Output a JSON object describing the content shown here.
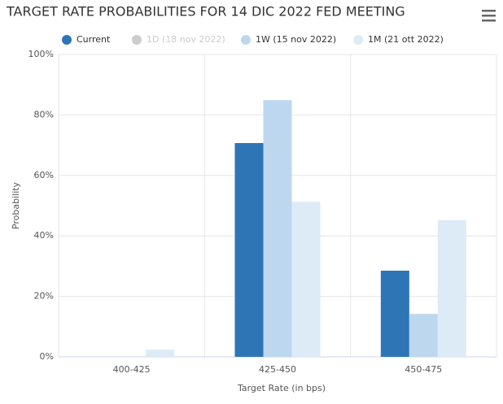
{
  "chart_data": {
    "type": "bar",
    "title": "TARGET RATE PROBABILITIES FOR 14 DIC 2022 FED MEETING",
    "x_label": "Target Rate (in bps)",
    "y_label": "Probability",
    "categories": [
      "400-425",
      "425-450",
      "450-475"
    ],
    "series": [
      {
        "name": "Current",
        "color": "#2e75b6",
        "values": [
          0,
          70.7,
          28.5
        ]
      },
      {
        "name": "1D (18 nov 2022)",
        "color": "#cccccc",
        "visible": false,
        "values": [
          null,
          null,
          null
        ]
      },
      {
        "name": "1W (15 nov 2022)",
        "color": "#bdd7ee",
        "values": [
          0,
          84.9,
          14.2
        ]
      },
      {
        "name": "1M (21 ott 2022)",
        "color": "#ddebf7",
        "values": [
          2.4,
          51.3,
          45.2
        ]
      }
    ],
    "ylim": [
      0,
      100
    ],
    "yticks": [
      {
        "value": 0,
        "label": "0%"
      },
      {
        "value": 20,
        "label": "20%"
      },
      {
        "value": 40,
        "label": "40%"
      },
      {
        "value": 60,
        "label": "60%"
      },
      {
        "value": 80,
        "label": "80%"
      },
      {
        "value": 100,
        "label": "100%"
      }
    ],
    "grid": true
  }
}
